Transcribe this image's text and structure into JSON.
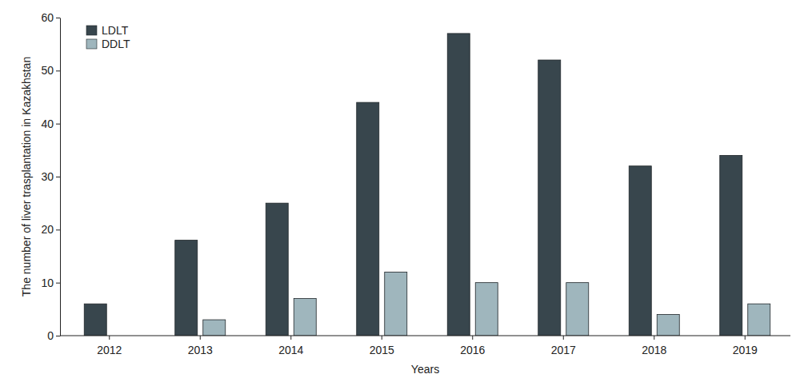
{
  "chart_data": {
    "type": "bar",
    "x_label": "Years",
    "y_label": "The number of liver trasplantation in Kazakhstan",
    "categories": [
      "2012",
      "2013",
      "2014",
      "2015",
      "2016",
      "2017",
      "2018",
      "2019"
    ],
    "series": [
      {
        "name": "LDLT",
        "color": "#38464d",
        "values": [
          6,
          18,
          25,
          44,
          57,
          52,
          32,
          34
        ]
      },
      {
        "name": "DDLT",
        "color": "#9fb6bd",
        "values": [
          0,
          3,
          7,
          12,
          10,
          10,
          4,
          6
        ]
      }
    ],
    "ylim": [
      0,
      60
    ],
    "yticks": [
      0,
      10,
      20,
      30,
      40,
      50,
      60
    ],
    "grid": false,
    "legend": "upper left"
  }
}
